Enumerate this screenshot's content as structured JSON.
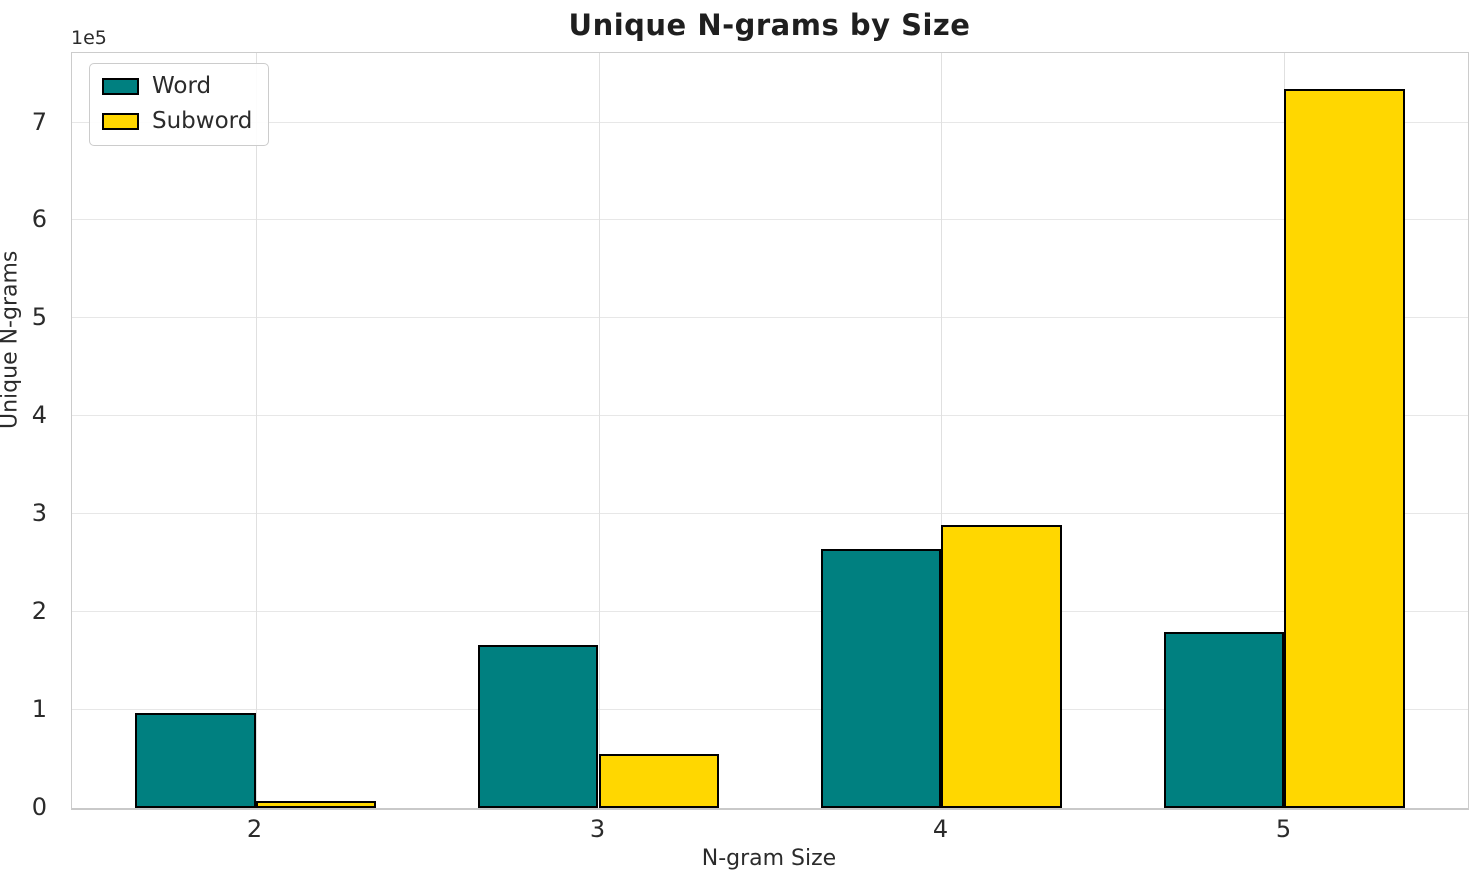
{
  "figure": {
    "background_color": "#ffffff",
    "grid_color": "#e7e7e7",
    "spine_color": "#cccccc",
    "text_color": "#2b2b2b"
  },
  "chart_data": {
    "type": "bar",
    "title": "Unique N-grams by Size",
    "xlabel": "N-gram Size",
    "ylabel": "Unique N-grams",
    "offset_text": "1e5",
    "categories": [
      "2",
      "3",
      "4",
      "5"
    ],
    "series": [
      {
        "name": "Word",
        "color": "#008080",
        "values": [
          97000,
          166000,
          265000,
          180000
        ]
      },
      {
        "name": "Subword",
        "color": "#FFD700",
        "values": [
          7000,
          55000,
          289000,
          734000
        ]
      }
    ],
    "bar_edge_color": "#000000",
    "bar_width_data_units": 0.35,
    "ylim": [
      0,
      771000
    ],
    "yticks": [
      0,
      1,
      2,
      3,
      4,
      5,
      6,
      7
    ],
    "ytick_scale": 100000,
    "grid": true,
    "legend_position": "upper left"
  }
}
